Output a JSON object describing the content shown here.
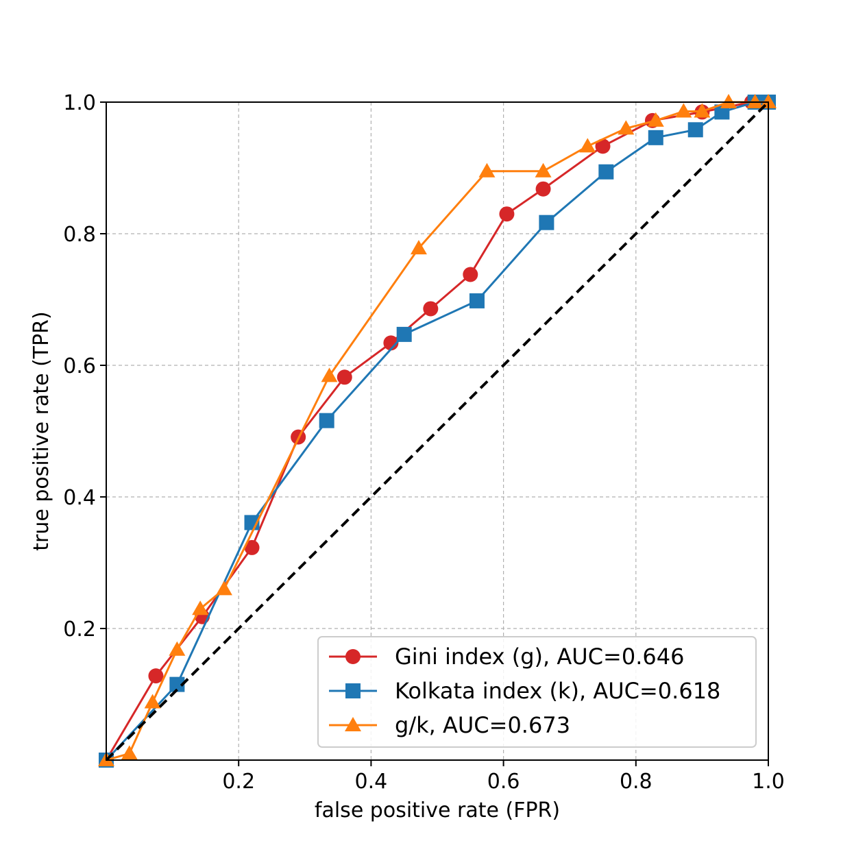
{
  "chart_data": {
    "type": "line",
    "title": "",
    "xlabel": "false positive rate (FPR)",
    "ylabel": "true positive rate (TPR)",
    "xlim": [
      0.0,
      1.0
    ],
    "ylim": [
      0.0,
      1.0
    ],
    "xticks": [
      0.2,
      0.4,
      0.6,
      0.8,
      1.0
    ],
    "xtick_labels": [
      "0.2",
      "0.4",
      "0.6",
      "0.8",
      "1.0"
    ],
    "yticks": [
      0.2,
      0.4,
      0.6,
      0.8,
      1.0
    ],
    "ytick_labels": [
      "0.2",
      "0.4",
      "0.6",
      "0.8",
      "1.0"
    ],
    "grid": true,
    "legend_position": "bottom-right",
    "diagonal": {
      "x": [
        0,
        1
      ],
      "y": [
        0,
        1
      ],
      "color": "#000000",
      "style": "dashed"
    },
    "series": [
      {
        "name": "Gini index (g), AUC=0.646",
        "color": "#d62728",
        "marker": "circle",
        "x": [
          0.0,
          0.075,
          0.145,
          0.22,
          0.29,
          0.36,
          0.43,
          0.49,
          0.55,
          0.605,
          0.66,
          0.75,
          0.825,
          0.9,
          0.975,
          1.0
        ],
        "y": [
          0.0,
          0.128,
          0.218,
          0.323,
          0.491,
          0.582,
          0.634,
          0.686,
          0.738,
          0.83,
          0.868,
          0.933,
          0.972,
          0.985,
          1.0,
          1.0
        ]
      },
      {
        "name": "Kolkata index (k), AUC=0.618",
        "color": "#1f77b4",
        "marker": "square",
        "x": [
          0.0,
          0.107,
          0.22,
          0.333,
          0.45,
          0.56,
          0.665,
          0.755,
          0.83,
          0.89,
          0.93,
          0.98,
          1.0
        ],
        "y": [
          0.0,
          0.115,
          0.361,
          0.516,
          0.647,
          0.698,
          0.817,
          0.894,
          0.946,
          0.958,
          0.985,
          1.0,
          1.0
        ]
      },
      {
        "name": "g/k, AUC=0.673",
        "color": "#ff7f0e",
        "marker": "triangle",
        "x": [
          0.0,
          0.035,
          0.07,
          0.107,
          0.142,
          0.178,
          0.337,
          0.472,
          0.575,
          0.66,
          0.727,
          0.785,
          0.83,
          0.872,
          0.9,
          0.94,
          0.98,
          1.0
        ],
        "y": [
          0.0,
          0.01,
          0.088,
          0.168,
          0.23,
          0.26,
          0.584,
          0.778,
          0.895,
          0.895,
          0.933,
          0.96,
          0.972,
          0.986,
          0.986,
          1.0,
          1.0,
          1.0
        ]
      }
    ]
  }
}
